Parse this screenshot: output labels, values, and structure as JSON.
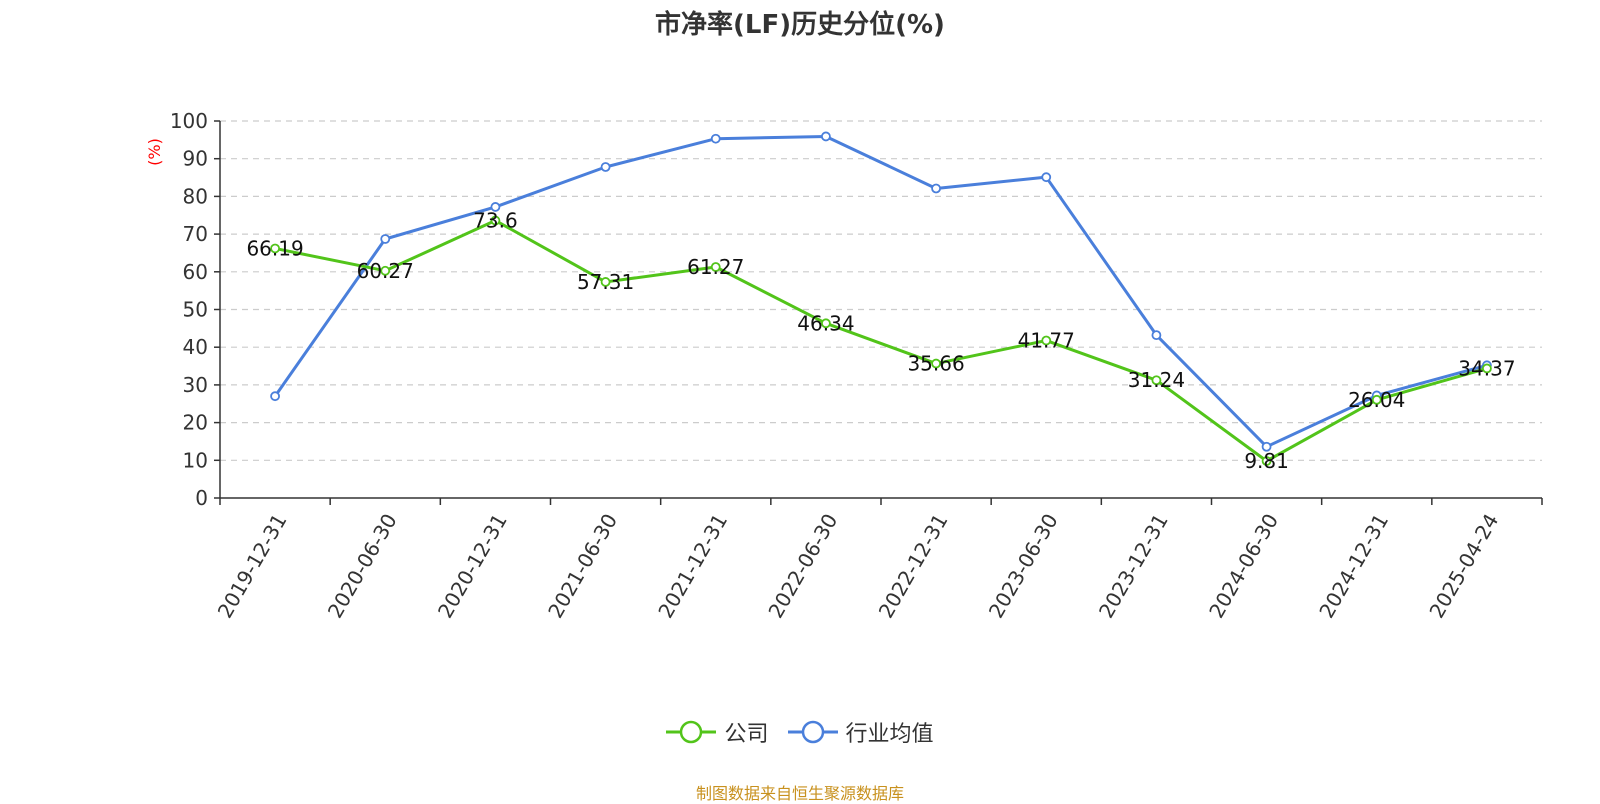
{
  "chart_data": {
    "type": "line",
    "title": "市净率(LF)历史分位(%)",
    "ylabel": "(%)",
    "xlabel": "",
    "ylim": [
      0,
      100
    ],
    "yticks": [
      0,
      10,
      20,
      30,
      40,
      50,
      60,
      70,
      80,
      90,
      100
    ],
    "grid": true,
    "legend_position": "bottom",
    "categories": [
      "2019-12-31",
      "2020-06-30",
      "2020-12-31",
      "2021-06-30",
      "2021-12-31",
      "2022-06-30",
      "2022-12-31",
      "2023-06-30",
      "2023-12-31",
      "2024-06-30",
      "2024-12-31",
      "2025-04-24"
    ],
    "series": [
      {
        "name": "公司",
        "color": "#52c41a",
        "values": [
          66.19,
          60.27,
          73.6,
          57.31,
          61.27,
          46.34,
          35.66,
          41.77,
          31.24,
          9.81,
          26.04,
          34.37
        ],
        "labels": [
          "66.19",
          "60.27",
          "73.6",
          "57.31",
          "61.27",
          "46.34",
          "35.66",
          "41.77",
          "31.24",
          "9.81",
          "26.04",
          "34.37"
        ]
      },
      {
        "name": "行业均值",
        "color": "#4a7fdb",
        "values": [
          27.0,
          68.7,
          77.2,
          87.8,
          95.3,
          95.9,
          82.1,
          85.1,
          43.2,
          13.6,
          27.2,
          35.2
        ]
      }
    ]
  },
  "footer": {
    "source": "制图数据来自恒生聚源数据库"
  }
}
